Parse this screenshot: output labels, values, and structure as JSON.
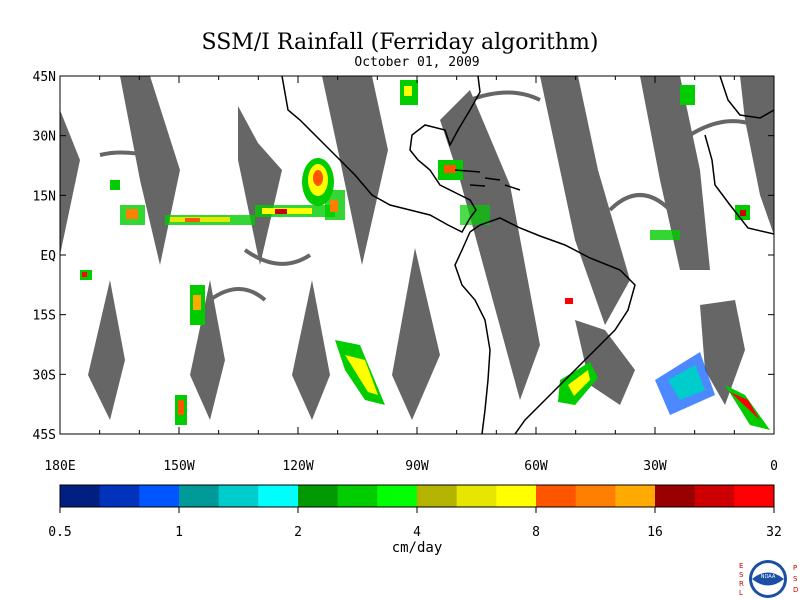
{
  "title": "SSM/I Rainfall (Ferriday algorithm)",
  "date": "October 01, 2009",
  "lat_labels": [
    "45N",
    "30N",
    "15N",
    "EQ",
    "15S",
    "30S",
    "45S"
  ],
  "lon_labels": [
    "180E",
    "150W",
    "120W",
    "90W",
    "60W",
    "30W",
    "0"
  ],
  "lat_values": [
    45,
    30,
    15,
    0,
    -15,
    -30,
    -45
  ],
  "lon_values": [
    -180,
    -150,
    -120,
    -90,
    -60,
    -30,
    0
  ],
  "extent": {
    "lon": [
      -180,
      0
    ],
    "lat": [
      -45,
      45
    ]
  },
  "colorbar": {
    "colors": [
      "#001f7f",
      "#0033bb",
      "#0055ff",
      "#009999",
      "#00cccc",
      "#00ffff",
      "#009900",
      "#00cc00",
      "#00ff00",
      "#b3b300",
      "#e6e600",
      "#ffff00",
      "#ff5500",
      "#ff8000",
      "#ffaa00",
      "#990000",
      "#cc0000",
      "#ff0000"
    ],
    "tick_labels": [
      "0.5",
      "1",
      "2",
      "4",
      "8",
      "16",
      "32"
    ],
    "units": "cm/day"
  },
  "swath_color": "#666666",
  "logo": {
    "left_letters": [
      "E",
      "S",
      "R",
      "L"
    ],
    "right_letters": [
      "P",
      "S",
      "D"
    ],
    "center_text": "NOAA"
  }
}
